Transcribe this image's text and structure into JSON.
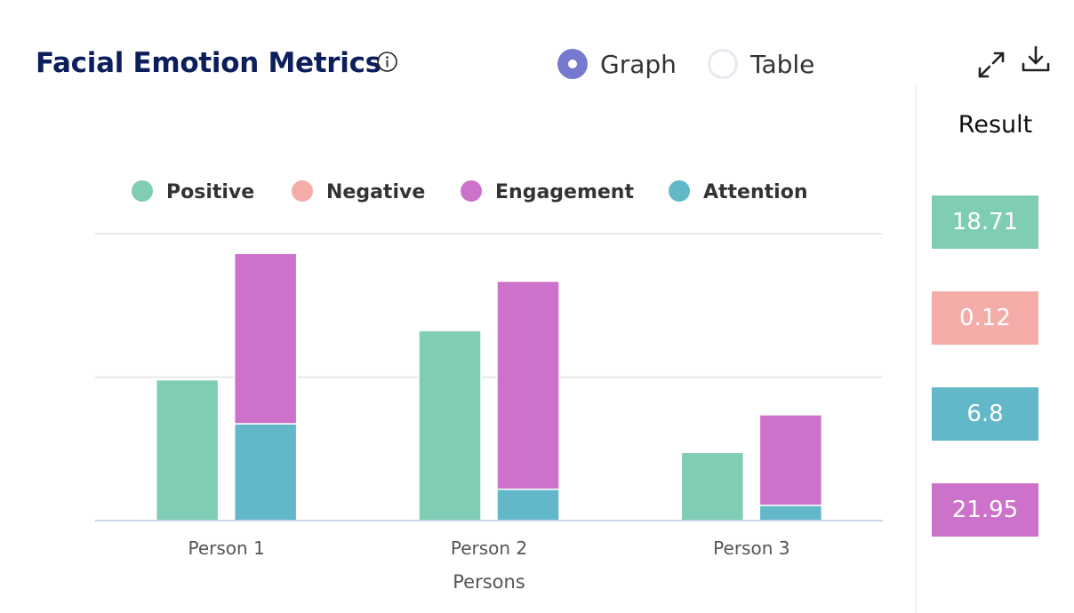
{
  "header": {
    "title": "Facial Emotion Metrics",
    "view_options": [
      {
        "label": "Graph",
        "selected": true
      },
      {
        "label": "Table",
        "selected": false
      }
    ],
    "icons": {
      "info": "info-icon",
      "expand": "expand-icon",
      "download": "download-icon"
    }
  },
  "colors": {
    "Positive": "#7fcdb4",
    "Negative": "#f4aca9",
    "Engagement": "#cd72ca",
    "Attention": "#62b8c9"
  },
  "chart_data": {
    "type": "bar",
    "categories": [
      "Person 1",
      "Person 2",
      "Person 3"
    ],
    "xlabel": "Persons",
    "ylabel": "",
    "ylim": [
      0,
      32
    ],
    "grid": true,
    "legend": {
      "position": "top",
      "entries": [
        "Positive",
        "Negative",
        "Engagement",
        "Attention"
      ]
    },
    "series": [
      {
        "name": "Positive",
        "stack": "a",
        "values": [
          15.7,
          21.2,
          7.6
        ]
      },
      {
        "name": "Negative",
        "stack": "a",
        "values": [
          0,
          0.12,
          0
        ]
      },
      {
        "name": "Attention",
        "stack": "b",
        "values": [
          10.8,
          3.5,
          1.7
        ]
      },
      {
        "name": "Engagement",
        "stack": "b",
        "values": [
          19.0,
          23.2,
          10.1
        ]
      }
    ]
  },
  "result": {
    "title": "Result",
    "items": [
      {
        "metric": "Positive",
        "value": "18.71"
      },
      {
        "metric": "Negative",
        "value": "0.12"
      },
      {
        "metric": "Attention",
        "value": "6.8"
      },
      {
        "metric": "Engagement",
        "value": "21.95"
      }
    ]
  }
}
